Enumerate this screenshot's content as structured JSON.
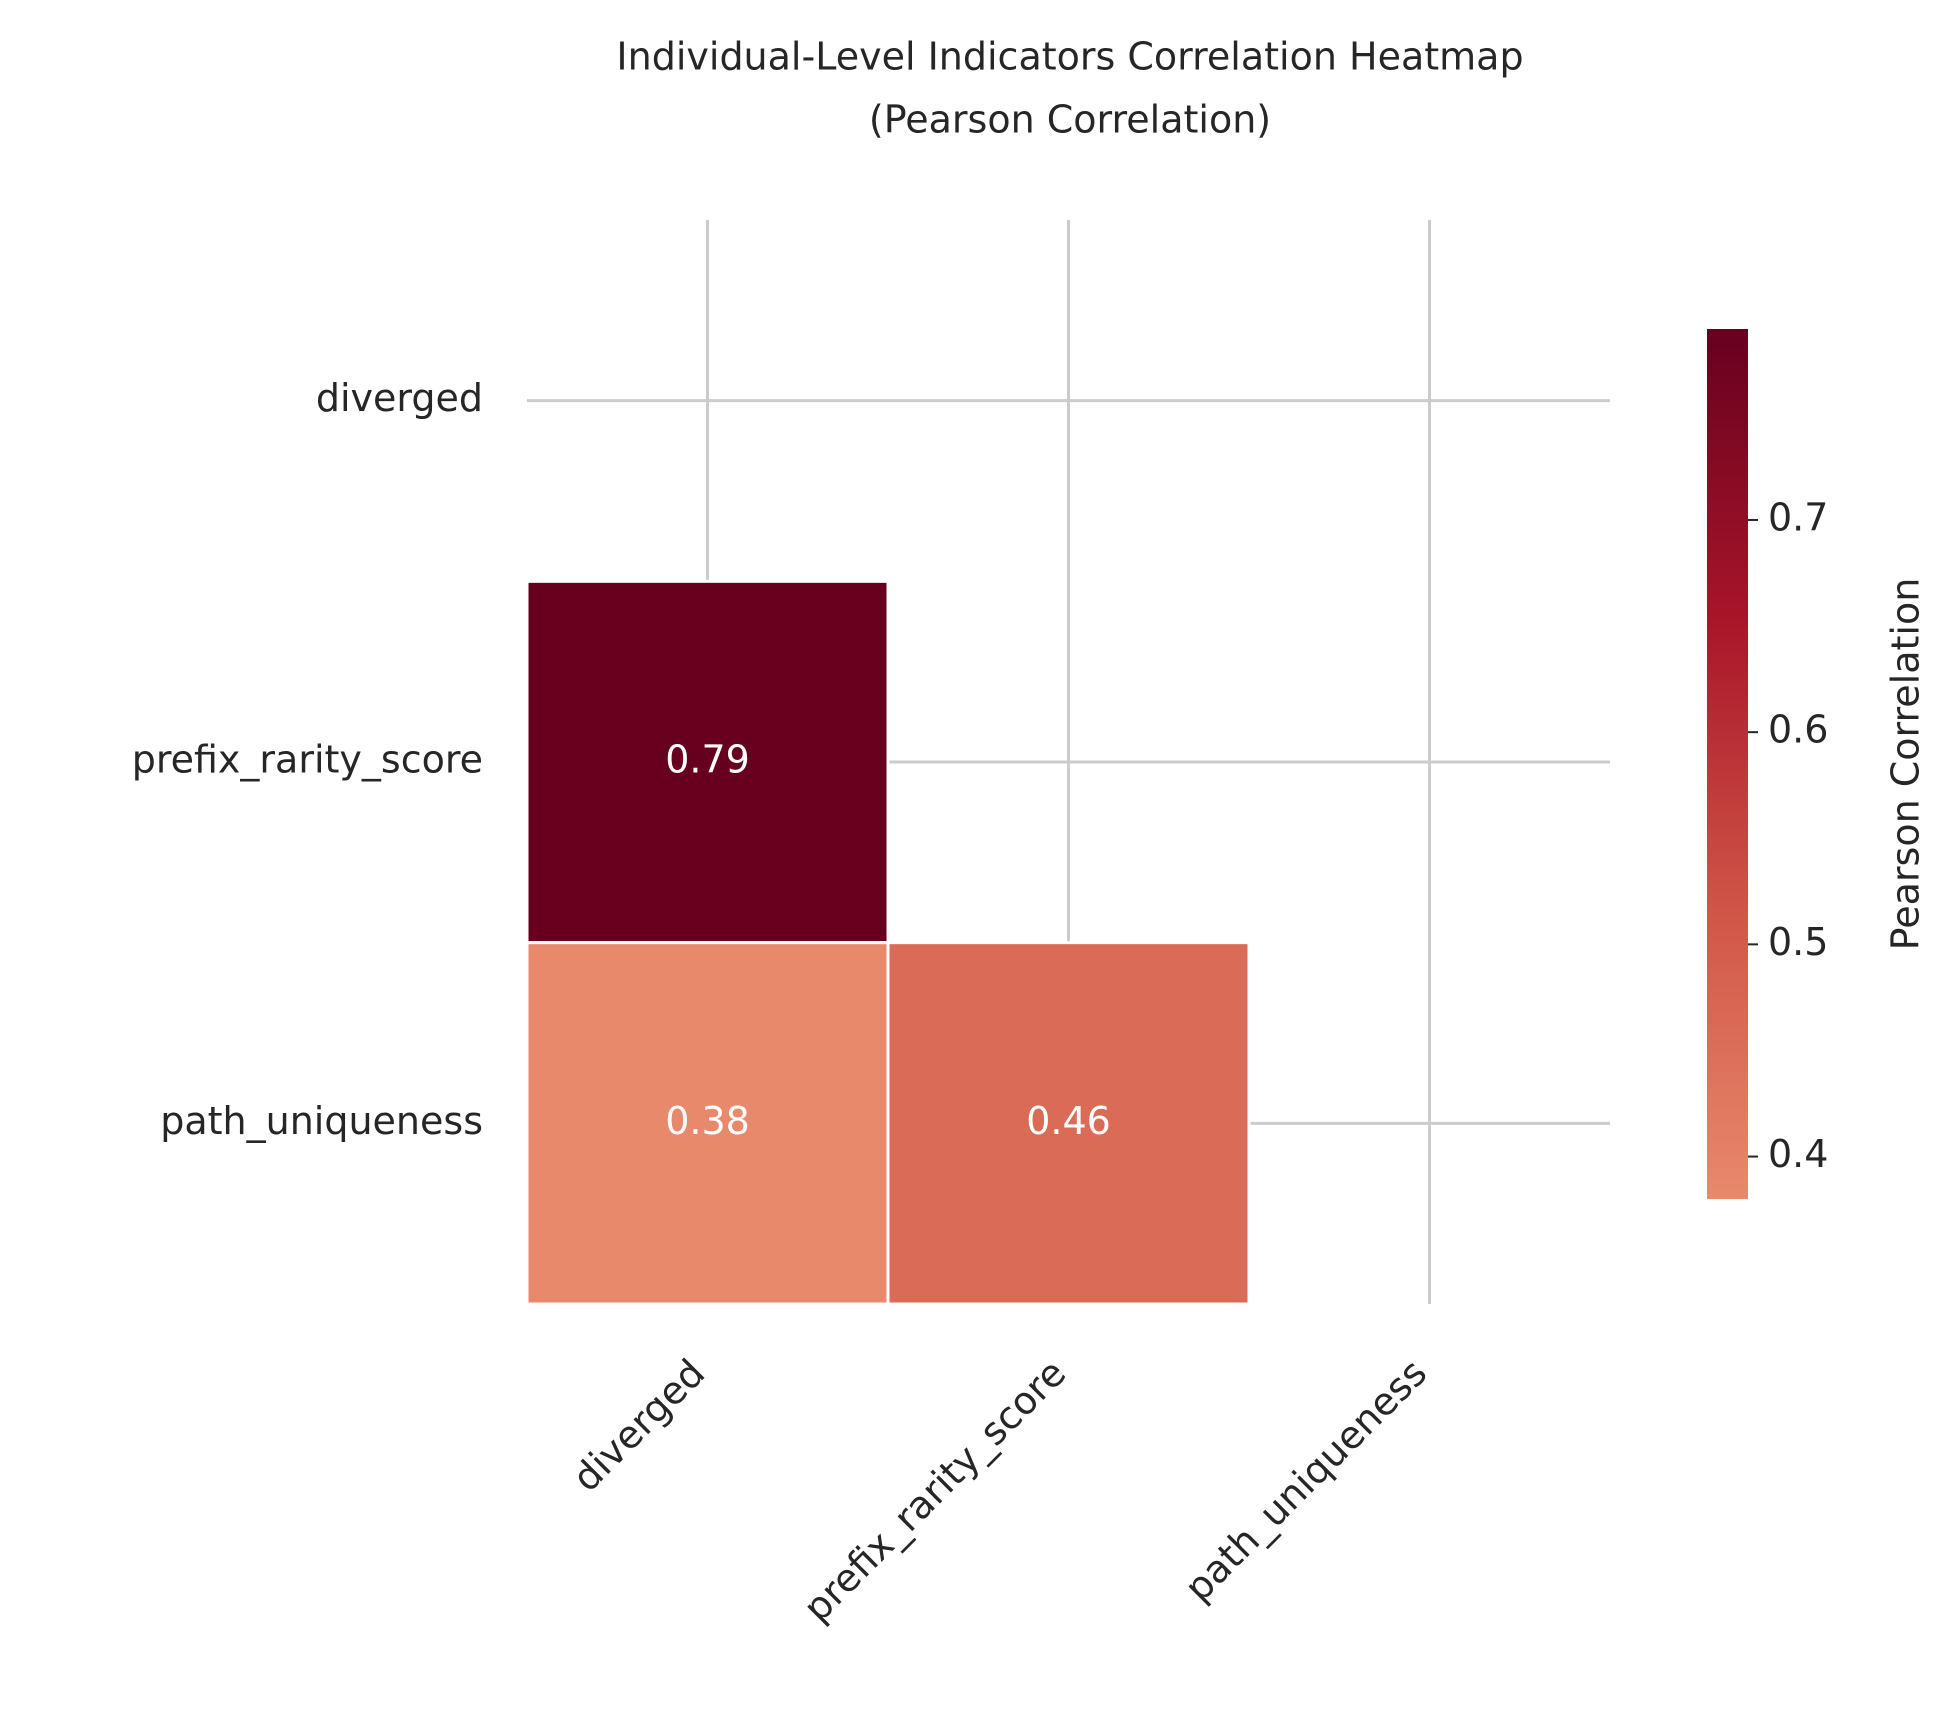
{
  "chart_data": {
    "type": "heatmap",
    "title": "Individual-Level Indicators Correlation Heatmap",
    "subtitle": "(Pearson Correlation)",
    "x_categories": [
      "diverged",
      "prefix_rarity_score",
      "path_uniqueness"
    ],
    "y_categories": [
      "diverged",
      "prefix_rarity_score",
      "path_uniqueness"
    ],
    "values": [
      [
        null,
        null,
        null
      ],
      [
        0.79,
        null,
        null
      ],
      [
        0.38,
        0.46,
        null
      ]
    ],
    "colorbar_label": "Pearson Correlation",
    "zlim": [
      0.38,
      0.79
    ],
    "zticks": [
      0.4,
      0.5,
      0.6,
      0.7
    ],
    "colormap": [
      "#e8896c",
      "#d05547",
      "#a81529",
      "#67001f"
    ],
    "grid": true
  }
}
